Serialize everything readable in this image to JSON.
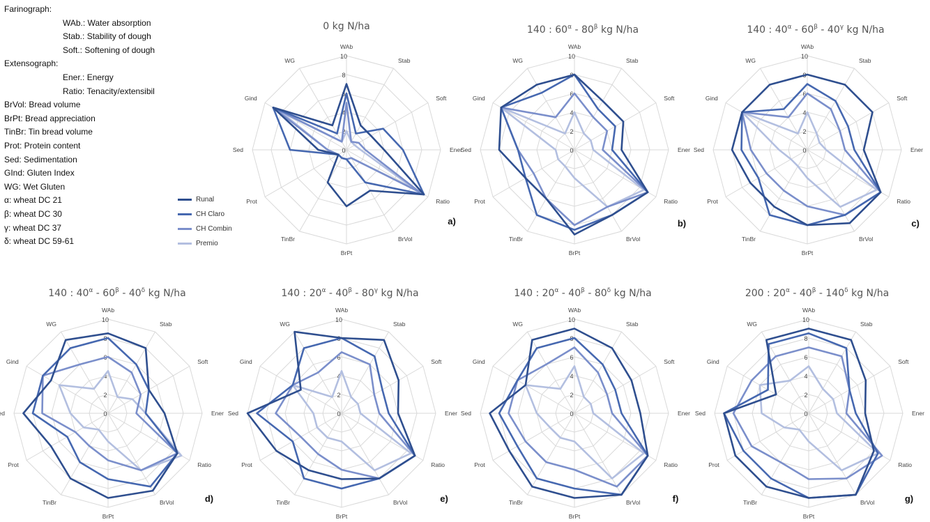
{
  "glossary": [
    {
      "text": "Farinograph:",
      "indent": false
    },
    {
      "text": "WAb.: Water absorption",
      "indent": true
    },
    {
      "text": "Stab.: Stability of dough",
      "indent": true
    },
    {
      "text": "Soft.: Softening of dough",
      "indent": true
    },
    {
      "text": "Extensograph:",
      "indent": false
    },
    {
      "text": "Ener.: Energy",
      "indent": true
    },
    {
      "text": "Ratio: Tenacity/extensibil",
      "indent": true
    },
    {
      "text": "BrVol: Bread volume",
      "indent": false
    },
    {
      "text": "BrPt: Bread appreciation",
      "indent": false
    },
    {
      "text": "TinBr: Tin bread volume",
      "indent": false
    },
    {
      "text": "Prot: Protein content",
      "indent": false
    },
    {
      "text": "Sed: Sedimentation",
      "indent": false
    },
    {
      "text": "GInd: Gluten Index",
      "indent": false
    },
    {
      "text": "WG: Wet Gluten",
      "indent": false
    },
    {
      "text": "α: wheat DC 21",
      "indent": false
    },
    {
      "text": "β: wheat DC 30",
      "indent": false
    },
    {
      "text": "γ: wheat DC 37",
      "indent": false
    },
    {
      "text": "δ: wheat DC 59-61",
      "indent": false
    }
  ],
  "colors": {
    "series": [
      "#2f4f8f",
      "#4668b0",
      "#7b8fcb",
      "#b3bfe0"
    ],
    "grid": "#d9d9d9"
  },
  "chart_data": {
    "type": "radar",
    "axes": [
      "WAb",
      "Stab",
      "Soft",
      "Ener",
      "Ratio",
      "BrVol",
      "BrPt",
      "TinBr",
      "Prot",
      "Sed",
      "Gind",
      "WG"
    ],
    "ylim": [
      0,
      10
    ],
    "ticks": [
      "0",
      "2",
      "4",
      "6",
      "8",
      "10"
    ],
    "series_names": [
      "Runal",
      "CH Claro",
      "CH Combin",
      "Premio"
    ],
    "legend_position": "left",
    "panels": [
      {
        "id": "a",
        "label": "a)",
        "title": [
          {
            "t": "0 kg N/ha"
          }
        ],
        "series": [
          {
            "name": "Runal",
            "values": [
              7,
              3,
              3,
              4,
              9.5,
              5,
              6,
              4,
              1,
              3,
              9,
              3
            ]
          },
          {
            "name": "CH Claro",
            "values": [
              6,
              2,
              4.5,
              6,
              9.5,
              4,
              1,
              1,
              1,
              6,
              9,
              2
            ]
          },
          {
            "name": "CH Combin",
            "values": [
              5,
              1,
              1.5,
              2,
              9,
              1,
              1,
              1,
              1,
              2,
              9,
              1
            ]
          },
          {
            "name": "Premio",
            "values": [
              2,
              1,
              1,
              1.5,
              8.5,
              1,
              1,
              1,
              1,
              2,
              8,
              1
            ]
          }
        ]
      },
      {
        "id": "b",
        "label": "b)",
        "title": [
          {
            "t": "140 : 60"
          },
          {
            "t": "α",
            "sup": true
          },
          {
            "t": " - 80"
          },
          {
            "t": "β",
            "sup": true
          },
          {
            "t": " kg N/ha"
          }
        ],
        "series": [
          {
            "name": "Runal",
            "values": [
              8,
              6,
              6,
              5,
              9,
              8,
              9,
              6,
              6,
              8,
              9,
              8
            ]
          },
          {
            "name": "CH Claro",
            "values": [
              8,
              5,
              5,
              4,
              9,
              8,
              8.5,
              8,
              6,
              6,
              9,
              7
            ]
          },
          {
            "name": "CH Combin",
            "values": [
              6,
              4,
              4,
              3,
              9,
              7,
              8,
              6,
              5,
              6,
              9,
              4
            ]
          },
          {
            "name": "Premio",
            "values": [
              4,
              2,
              2,
              2,
              8.5,
              7,
              3,
              2,
              2,
              2,
              9,
              2
            ]
          }
        ]
      },
      {
        "id": "c",
        "label": "c)",
        "title": [
          {
            "t": "140 : 40"
          },
          {
            "t": "α",
            "sup": true
          },
          {
            "t": " - 60"
          },
          {
            "t": "β",
            "sup": true
          },
          {
            "t": " - 40"
          },
          {
            "t": "γ",
            "sup": true
          },
          {
            "t": " kg N/ha"
          }
        ],
        "series": [
          {
            "name": "Runal",
            "values": [
              8,
              8,
              8,
              6,
              9,
              9,
              8,
              7,
              7,
              8,
              8,
              8
            ]
          },
          {
            "name": "CH Claro",
            "values": [
              7,
              6,
              5,
              5,
              9,
              8,
              8,
              8,
              6,
              7,
              8,
              5
            ]
          },
          {
            "name": "CH Combin",
            "values": [
              6,
              5,
              4,
              4,
              9,
              8,
              6,
              5,
              5,
              6,
              8,
              4
            ]
          },
          {
            "name": "Premio",
            "values": [
              4,
              2,
              1.5,
              2,
              8.5,
              7,
              3,
              2,
              2,
              3,
              8,
              2
            ]
          }
        ]
      },
      {
        "id": "d",
        "label": "d)",
        "title": [
          {
            "t": "140 : 40"
          },
          {
            "t": "α",
            "sup": true
          },
          {
            "t": " - 60"
          },
          {
            "t": "β",
            "sup": true
          },
          {
            "t": " - 40"
          },
          {
            "t": "δ",
            "sup": true
          },
          {
            "t": " kg N/ha"
          }
        ],
        "series": [
          {
            "name": "Runal",
            "values": [
              8.5,
              8,
              5,
              6,
              8.5,
              9.5,
              9,
              8,
              7,
              9,
              7,
              9
            ]
          },
          {
            "name": "CH Claro",
            "values": [
              8,
              6,
              5,
              4,
              8.5,
              9,
              7,
              6,
              5,
              8,
              8,
              8
            ]
          },
          {
            "name": "CH Combin",
            "values": [
              6,
              5,
              4,
              3,
              8.5,
              7,
              5,
              4,
              4,
              7,
              8,
              6
            ]
          },
          {
            "name": "Premio",
            "values": [
              4.5,
              2,
              3,
              4,
              9,
              7,
              3,
              2,
              3,
              4,
              6,
              3
            ]
          }
        ]
      },
      {
        "id": "e",
        "label": "e)",
        "title": [
          {
            "t": "140 : 20"
          },
          {
            "t": "α",
            "sup": true
          },
          {
            "t": " - 40"
          },
          {
            "t": "β",
            "sup": true
          },
          {
            "t": " - 80"
          },
          {
            "t": "γ",
            "sup": true
          },
          {
            "t": " kg N/ha"
          }
        ],
        "series": [
          {
            "name": "Runal",
            "values": [
              8,
              9,
              7,
              6,
              9,
              8,
              7,
              7,
              8,
              10,
              5,
              10
            ]
          },
          {
            "name": "CH Claro",
            "values": [
              8,
              7,
              5,
              5,
              9,
              8,
              8,
              8,
              6,
              9,
              6,
              8
            ]
          },
          {
            "name": "CH Combin",
            "values": [
              6.5,
              6,
              4,
              4,
              9,
              8,
              6,
              5,
              5,
              7,
              6,
              5
            ]
          },
          {
            "name": "Premio",
            "values": [
              4.5,
              2,
              2,
              2,
              8.5,
              7,
              3,
              3,
              3,
              3,
              6,
              2
            ]
          }
        ]
      },
      {
        "id": "f",
        "label": "f)",
        "title": [
          {
            "t": "140 : 20"
          },
          {
            "t": "α",
            "sup": true
          },
          {
            "t": " - 40"
          },
          {
            "t": "β",
            "sup": true
          },
          {
            "t": " - 80"
          },
          {
            "t": "δ",
            "sup": true
          },
          {
            "t": " kg N/ha"
          }
        ],
        "series": [
          {
            "name": "Runal",
            "values": [
              9,
              8,
              7,
              7,
              9,
              10,
              9,
              9,
              8,
              9,
              6,
              9
            ]
          },
          {
            "name": "CH Claro",
            "values": [
              8,
              6,
              5,
              5,
              9,
              10,
              8,
              8,
              7,
              8,
              7,
              8
            ]
          },
          {
            "name": "CH Combin",
            "values": [
              7,
              5,
              4,
              4,
              9,
              9,
              6,
              6,
              6,
              7,
              7,
              6
            ]
          },
          {
            "name": "Premio",
            "values": [
              5,
              2,
              2,
              2,
              8.5,
              8,
              3,
              3,
              3,
              4,
              6,
              3
            ]
          }
        ]
      },
      {
        "id": "g",
        "label": "g)",
        "title": [
          {
            "t": "200 : 20"
          },
          {
            "t": "α",
            "sup": true
          },
          {
            "t": " - 40"
          },
          {
            "t": "β",
            "sup": true
          },
          {
            "t": " - 140"
          },
          {
            "t": "δ",
            "sup": true
          },
          {
            "t": " kg N/ha"
          }
        ],
        "series": [
          {
            "name": "Runal",
            "values": [
              9,
              9,
              7,
              6,
              8,
              10,
              9,
              9,
              9,
              9,
              4,
              9
            ]
          },
          {
            "name": "CH Claro",
            "values": [
              8.5,
              8,
              5,
              5,
              8.5,
              10,
              9,
              8,
              8,
              9,
              5,
              8.5
            ]
          },
          {
            "name": "CH Combin",
            "values": [
              7,
              7,
              5,
              4,
              9,
              8,
              7,
              6,
              7,
              8,
              7,
              7
            ]
          },
          {
            "name": "Premio",
            "values": [
              5,
              3,
              3,
              3,
              8.5,
              7,
              3,
              2,
              3,
              5,
              6,
              4
            ]
          }
        ]
      }
    ]
  }
}
